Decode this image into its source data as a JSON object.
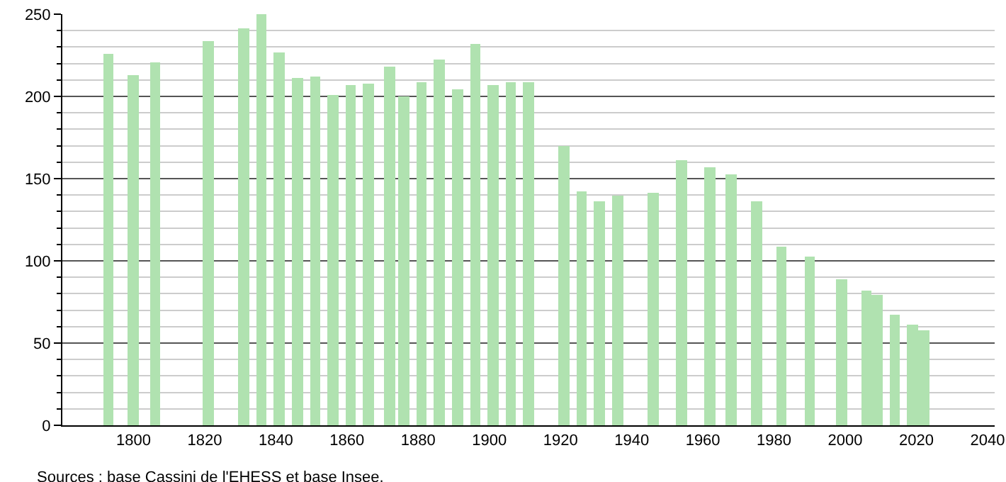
{
  "chart_data": {
    "type": "bar",
    "x": [
      1793,
      1800,
      1806,
      1821,
      1831,
      1836,
      1841,
      1846,
      1851,
      1856,
      1861,
      1866,
      1872,
      1876,
      1881,
      1886,
      1891,
      1896,
      1901,
      1906,
      1911,
      1921,
      1926,
      1931,
      1936,
      1946,
      1954,
      1962,
      1968,
      1975,
      1982,
      1990,
      1999,
      2006,
      2009,
      2014,
      2019,
      2022
    ],
    "values": [
      226,
      213,
      221,
      234,
      241,
      250,
      227,
      211,
      212,
      201,
      207,
      208,
      218,
      200,
      209,
      222,
      204,
      232,
      207,
      209,
      209,
      170,
      142,
      136,
      140,
      141,
      161,
      157,
      153,
      136,
      109,
      103,
      89,
      82,
      79,
      67,
      61,
      58
    ],
    "color": "#b0e2b0",
    "xlim": [
      1780,
      2042
    ],
    "xticks": [
      1800,
      1820,
      1840,
      1860,
      1880,
      1900,
      1920,
      1940,
      1960,
      1980,
      2000,
      2020,
      2040
    ],
    "ylim": [
      0,
      250
    ],
    "yticks": [
      0,
      50,
      100,
      150,
      200,
      250
    ],
    "grid": "y",
    "annotations": [
      "Sources : base Cassini de l'EHESS et base Insee."
    ]
  }
}
